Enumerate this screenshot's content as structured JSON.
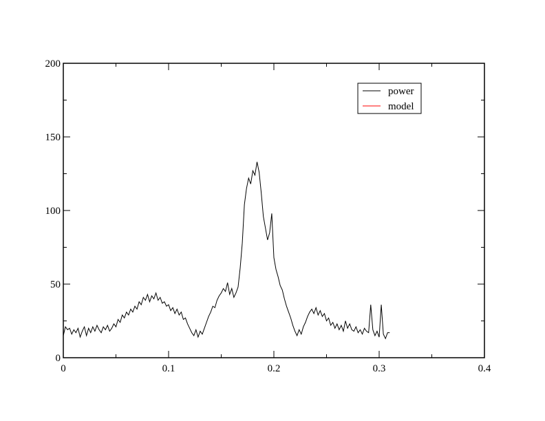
{
  "chart_data": {
    "type": "line",
    "x": [
      0,
      0.002,
      0.004,
      0.006,
      0.008,
      0.01,
      0.012,
      0.014,
      0.016,
      0.018,
      0.02,
      0.022,
      0.024,
      0.026,
      0.028,
      0.03,
      0.032,
      0.034,
      0.036,
      0.038,
      0.04,
      0.042,
      0.044,
      0.046,
      0.048,
      0.05,
      0.052,
      0.054,
      0.056,
      0.058,
      0.06,
      0.062,
      0.064,
      0.066,
      0.068,
      0.07,
      0.072,
      0.074,
      0.076,
      0.078,
      0.08,
      0.082,
      0.084,
      0.086,
      0.088,
      0.09,
      0.092,
      0.094,
      0.096,
      0.098,
      0.1,
      0.102,
      0.104,
      0.106,
      0.108,
      0.11,
      0.112,
      0.114,
      0.116,
      0.118,
      0.12,
      0.122,
      0.124,
      0.126,
      0.128,
      0.13,
      0.132,
      0.134,
      0.136,
      0.138,
      0.14,
      0.142,
      0.144,
      0.146,
      0.148,
      0.15,
      0.152,
      0.154,
      0.156,
      0.158,
      0.16,
      0.162,
      0.164,
      0.166,
      0.168,
      0.17,
      0.172,
      0.174,
      0.176,
      0.178,
      0.18,
      0.182,
      0.184,
      0.186,
      0.188,
      0.19,
      0.192,
      0.194,
      0.196,
      0.198,
      0.2,
      0.202,
      0.204,
      0.206,
      0.208,
      0.21,
      0.212,
      0.214,
      0.216,
      0.218,
      0.22,
      0.222,
      0.224,
      0.226,
      0.228,
      0.23,
      0.232,
      0.234,
      0.236,
      0.238,
      0.24,
      0.242,
      0.244,
      0.246,
      0.248,
      0.25,
      0.252,
      0.254,
      0.256,
      0.258,
      0.26,
      0.262,
      0.264,
      0.266,
      0.268,
      0.27,
      0.272,
      0.274,
      0.276,
      0.278,
      0.28,
      0.282,
      0.284,
      0.286,
      0.288,
      0.29,
      0.292,
      0.294,
      0.296,
      0.298,
      0.3,
      0.302,
      0.304,
      0.306,
      0.308,
      0.31
    ],
    "series": [
      {
        "name": "power",
        "color": "#000000",
        "values": [
          15,
          21,
          19,
          20,
          16,
          19,
          17,
          20,
          14,
          18,
          21,
          15,
          20,
          17,
          21,
          18,
          22,
          19,
          17,
          21,
          19,
          22,
          18,
          20,
          23,
          21,
          26,
          24,
          29,
          27,
          31,
          29,
          33,
          31,
          35,
          33,
          38,
          36,
          41,
          39,
          43,
          38,
          42,
          40,
          44,
          39,
          41,
          37,
          38,
          35,
          36,
          32,
          34,
          30,
          33,
          29,
          31,
          26,
          27,
          23,
          20,
          17,
          15,
          19,
          14,
          18,
          16,
          20,
          24,
          28,
          31,
          35,
          34,
          39,
          42,
          44,
          47,
          45,
          51,
          43,
          47,
          41,
          44,
          48,
          61,
          78,
          104,
          115,
          122,
          118,
          127,
          124,
          133,
          126,
          112,
          96,
          88,
          80,
          85,
          98,
          68,
          60,
          55,
          49,
          46,
          40,
          35,
          31,
          27,
          22,
          18,
          15,
          19,
          16,
          21,
          24,
          28,
          31,
          33,
          30,
          34,
          29,
          32,
          28,
          30,
          25,
          27,
          22,
          24,
          20,
          23,
          19,
          22,
          18,
          25,
          20,
          23,
          19,
          18,
          21,
          17,
          19,
          16,
          20,
          18,
          17,
          36,
          19,
          15,
          18,
          14,
          36,
          16,
          13,
          17,
          17
        ]
      },
      {
        "name": "model",
        "color": "#ff0000",
        "values": [
          null,
          null,
          null,
          null,
          null,
          null,
          null,
          null,
          null,
          null,
          null,
          null,
          null,
          null,
          null,
          null,
          null,
          null,
          null,
          null,
          null,
          null,
          null,
          null,
          null,
          null,
          null,
          null,
          null,
          null,
          null,
          null,
          null,
          null,
          null,
          null,
          null,
          null,
          null,
          null,
          null,
          null,
          null,
          null,
          null,
          null,
          null,
          null,
          null,
          null,
          null,
          null,
          null,
          null,
          null,
          null,
          null,
          null,
          null,
          null,
          null,
          null,
          null,
          null,
          null,
          null,
          null,
          null,
          null,
          null,
          null,
          null,
          null,
          null,
          null,
          null,
          null,
          null,
          null,
          null,
          null,
          null,
          null,
          null,
          null,
          null,
          null,
          null,
          null,
          null,
          null,
          null,
          null,
          null,
          null,
          null,
          null,
          null,
          null,
          null,
          null,
          null,
          null,
          null,
          null,
          null,
          null,
          null,
          null,
          null,
          null,
          null,
          null,
          null,
          null,
          null,
          null,
          null,
          null,
          null,
          null,
          null,
          null,
          null,
          null,
          null,
          null,
          null,
          null,
          null,
          null,
          null,
          null,
          null,
          null,
          null,
          null,
          null,
          null,
          null,
          null,
          null,
          null,
          null,
          null,
          null,
          null,
          null,
          null,
          null,
          null,
          null,
          null,
          null,
          null,
          null
        ]
      }
    ],
    "xlim": [
      0,
      0.4
    ],
    "xticks": [
      0,
      0.1,
      0.2,
      0.3,
      0.4
    ],
    "xminorticks": [
      0.05,
      0.15,
      0.25,
      0.35
    ],
    "ylim": [
      0,
      200
    ],
    "yticks": [
      0,
      50,
      100,
      150,
      200
    ],
    "yminorticks": [
      25,
      75,
      125,
      175
    ],
    "legend": "upper right"
  }
}
